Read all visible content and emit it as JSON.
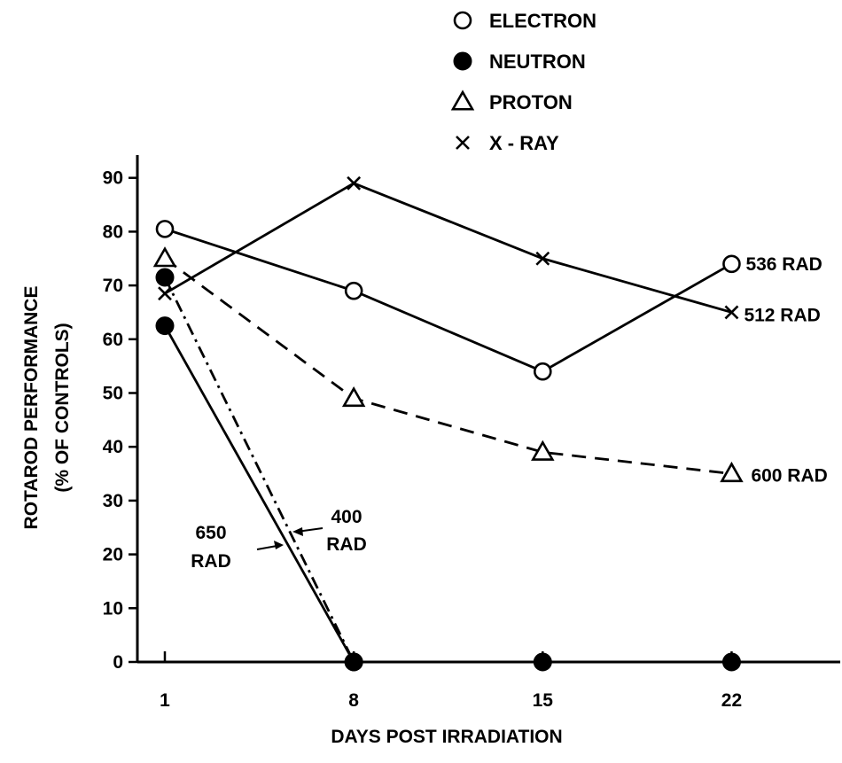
{
  "chart_data": {
    "type": "line",
    "xlabel": "DAYS POST IRRADIATION",
    "ylabel_lines": [
      "ROTAROD PERFORMANCE",
      "(% OF CONTROLS)"
    ],
    "x_ticks": [
      1,
      8,
      15,
      22
    ],
    "y_ticks": [
      0,
      10,
      20,
      30,
      40,
      50,
      60,
      70,
      80,
      90
    ],
    "xlim": [
      0.9,
      27
    ],
    "ylim": [
      0,
      95
    ],
    "grid": false,
    "legend_position": "top-center",
    "legend": [
      {
        "label": "ELECTRON",
        "marker": "open-circle"
      },
      {
        "label": "NEUTRON",
        "marker": "filled-circle"
      },
      {
        "label": "PROTON",
        "marker": "open-triangle"
      },
      {
        "label": "X - RAY",
        "marker": "x-cross"
      }
    ],
    "series": [
      {
        "name": "ELECTRON",
        "dose": "536 RAD",
        "marker": "open-circle",
        "line": "solid",
        "x": [
          1,
          8,
          15,
          22
        ],
        "y": [
          80.5,
          69,
          54,
          74
        ]
      },
      {
        "name": "X - RAY",
        "dose": "512 RAD",
        "marker": "x-cross",
        "line": "solid",
        "x": [
          1,
          8,
          15,
          22
        ],
        "y": [
          68.5,
          89,
          75,
          65
        ]
      },
      {
        "name": "PROTON",
        "dose": "600 RAD",
        "marker": "open-triangle",
        "line": "dashed",
        "x": [
          1,
          8,
          15,
          22
        ],
        "y": [
          75,
          49,
          39,
          35
        ]
      },
      {
        "name": "NEUTRON",
        "dose": "650 RAD",
        "marker": "filled-circle",
        "line": "solid",
        "x": [
          1,
          8,
          15,
          22
        ],
        "y": [
          62.5,
          0,
          0,
          0
        ]
      },
      {
        "name": "NEUTRON",
        "dose": "400 RAD",
        "marker": "filled-circle",
        "line": "dash-dot",
        "x": [
          1,
          8
        ],
        "y": [
          71.5,
          0
        ]
      }
    ],
    "annotations": [
      {
        "label_lines": [
          "650",
          "RAD"
        ],
        "points_to_series": "NEUTRON 650 RAD"
      },
      {
        "label_lines": [
          "400",
          "RAD"
        ],
        "points_to_series": "NEUTRON 400 RAD"
      }
    ]
  }
}
